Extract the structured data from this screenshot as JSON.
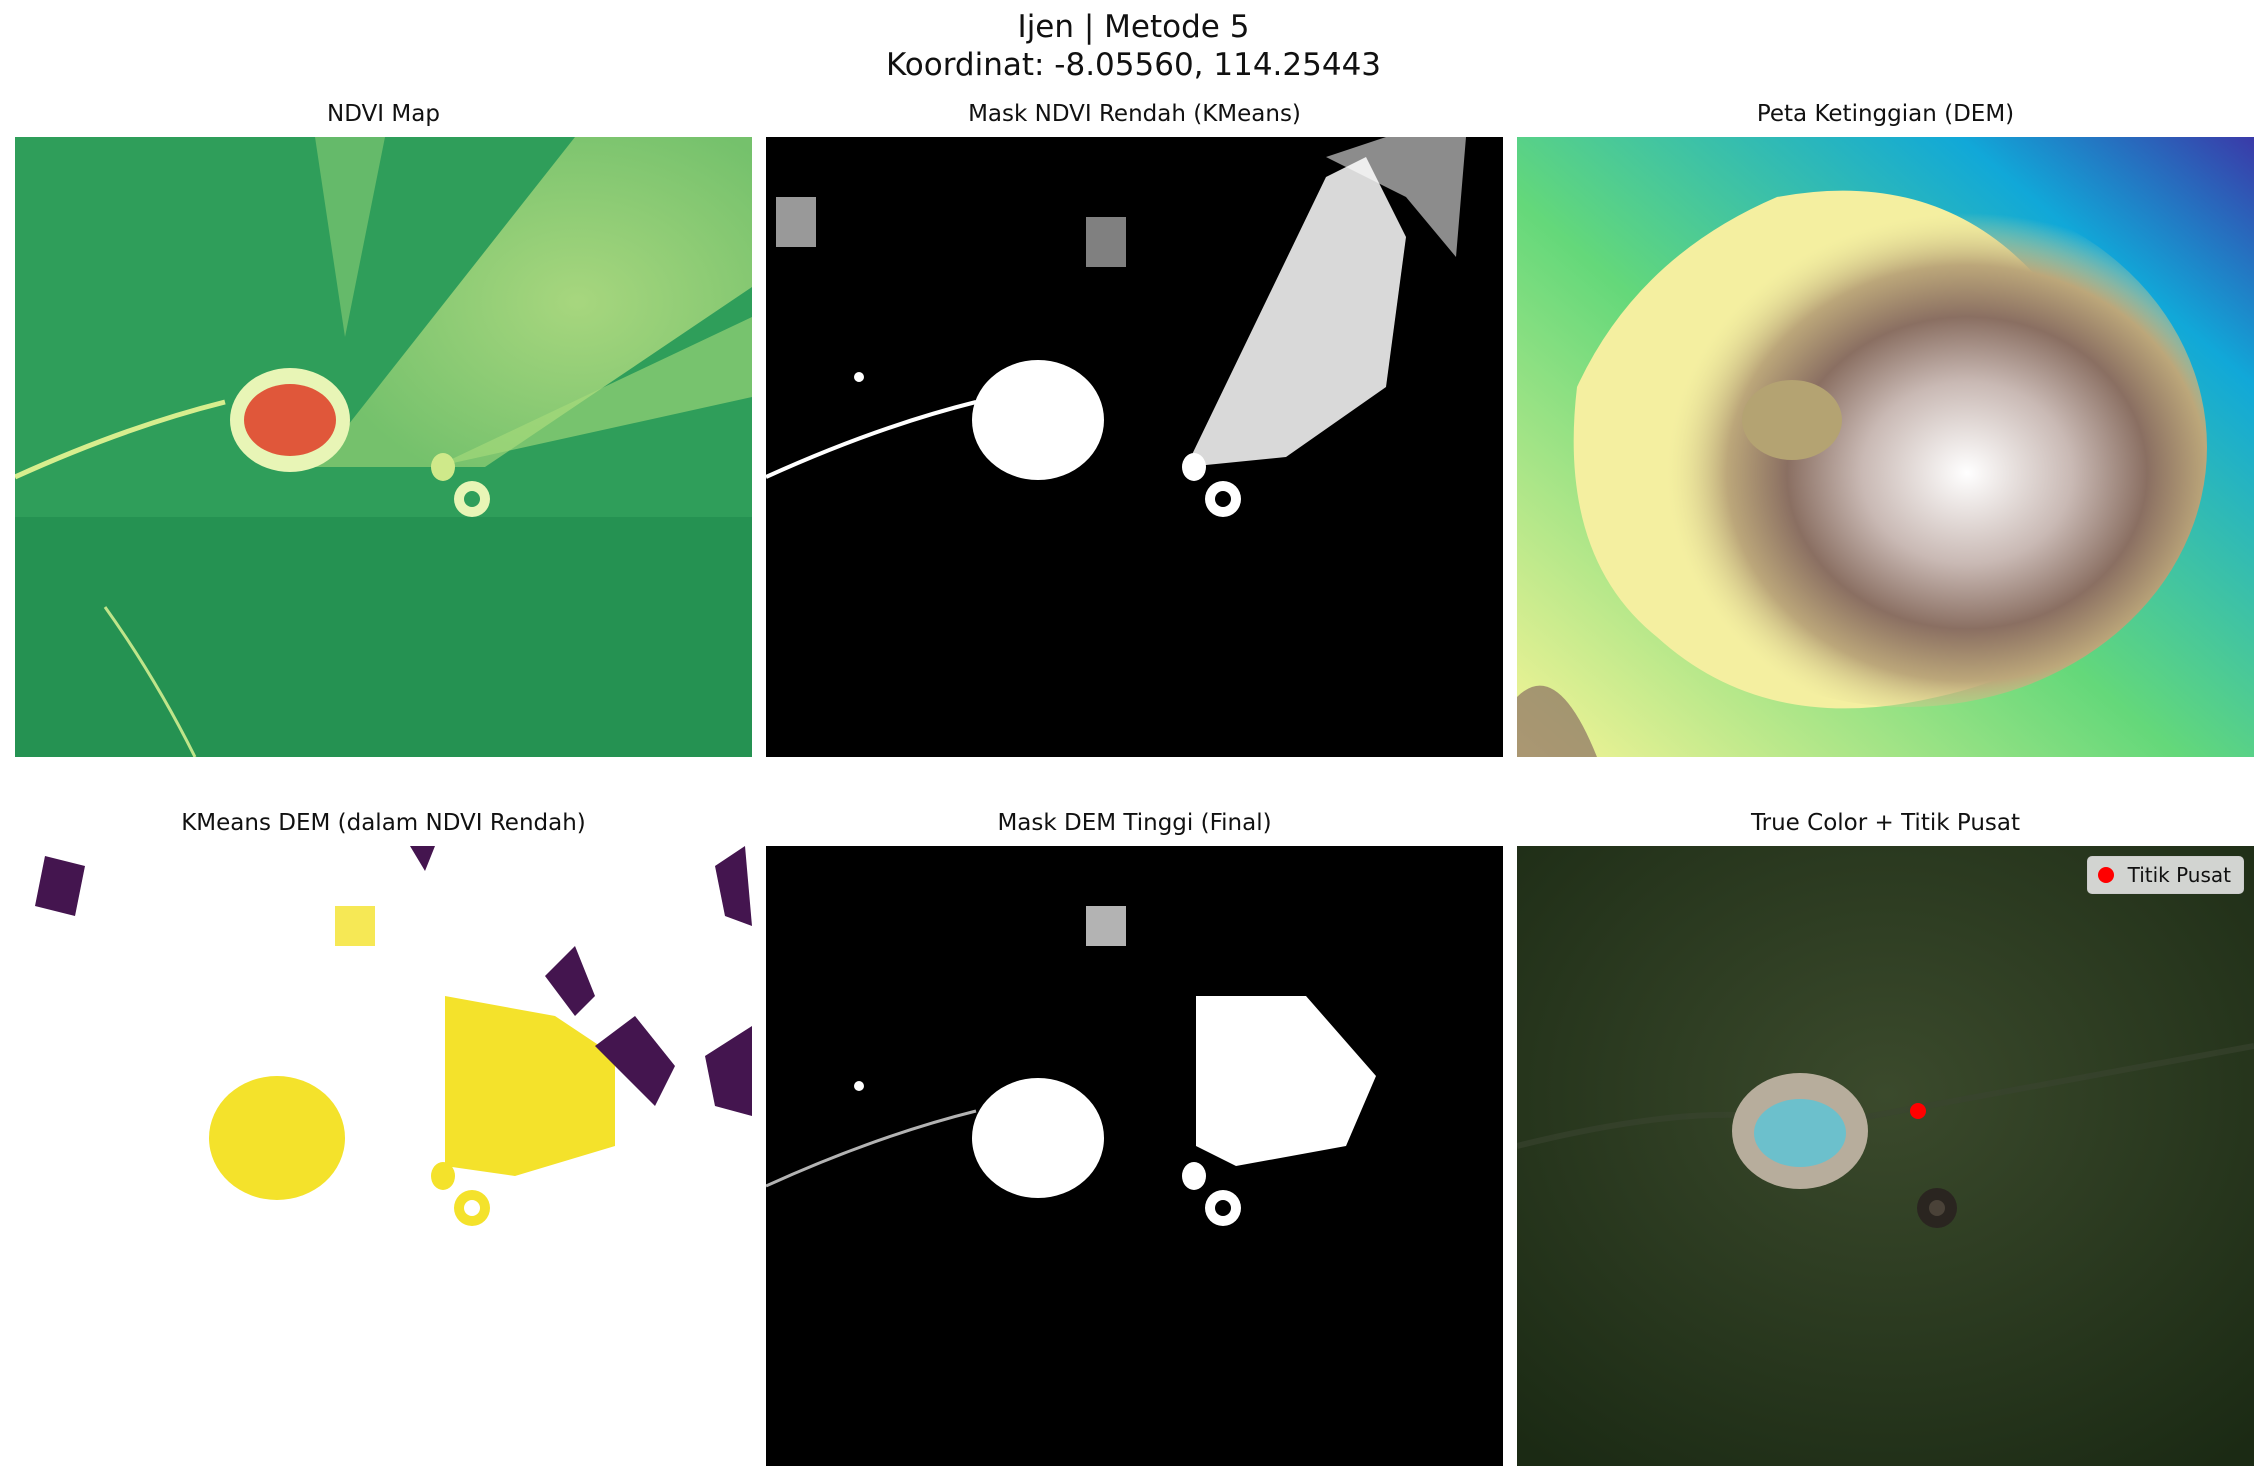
{
  "figure": {
    "suptitle_line1": "Ijen | Metode 5",
    "suptitle_line2": "Koordinat: -8.05560, 114.25443"
  },
  "panels": [
    {
      "title": "NDVI Map",
      "colormap": "RdYlGn"
    },
    {
      "title": "Mask NDVI Rendah (KMeans)",
      "colormap": "gray"
    },
    {
      "title": "Peta Ketinggian (DEM)",
      "colormap": "terrain"
    },
    {
      "title": "KMeans DEM (dalam NDVI Rendah)",
      "colormap": "viridis"
    },
    {
      "title": "Mask DEM Tinggi (Final)",
      "colormap": "gray"
    },
    {
      "title": "True Color + Titik Pusat",
      "colormap": "rgb"
    }
  ],
  "legend": {
    "label": "Titik Pusat",
    "marker_color": "#ff0000"
  },
  "colors": {
    "ndvi_green": "#2f9e5a",
    "ndvi_light": "#d7ee8e",
    "ndvi_red": "#e0573a",
    "viridis_yellow": "#f4e22b",
    "viridis_purple": "#44154f",
    "water": "#6cc0cc"
  }
}
